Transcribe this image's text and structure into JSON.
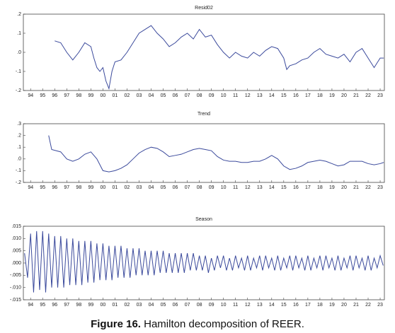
{
  "chart_data": [
    {
      "type": "line",
      "title": "Resid02",
      "color": "#3b4a9c",
      "xlim": [
        1993.4,
        2023.35
      ],
      "ylim": [
        -0.2,
        0.2
      ],
      "yticks": [
        {
          "value": 0.2,
          "label": ".2"
        },
        {
          "value": 0.1,
          "label": ".1"
        },
        {
          "value": 0,
          "label": ".0"
        },
        {
          "value": -0.1,
          "label": "-.1"
        },
        {
          "value": -0.2,
          "label": "-.2"
        }
      ],
      "xticks": [
        {
          "value": 1994,
          "label": "94"
        },
        {
          "value": 1995,
          "label": "95"
        },
        {
          "value": 1996,
          "label": "96"
        },
        {
          "value": 1997,
          "label": "97"
        },
        {
          "value": 1998,
          "label": "98"
        },
        {
          "value": 1999,
          "label": "99"
        },
        {
          "value": 2000,
          "label": "00"
        },
        {
          "value": 2001,
          "label": "01"
        },
        {
          "value": 2002,
          "label": "02"
        },
        {
          "value": 2003,
          "label": "03"
        },
        {
          "value": 2004,
          "label": "04"
        },
        {
          "value": 2005,
          "label": "05"
        },
        {
          "value": 2006,
          "label": "06"
        },
        {
          "value": 2007,
          "label": "07"
        },
        {
          "value": 2008,
          "label": "08"
        },
        {
          "value": 2009,
          "label": "09"
        },
        {
          "value": 2010,
          "label": "10"
        },
        {
          "value": 2011,
          "label": "11"
        },
        {
          "value": 2012,
          "label": "12"
        },
        {
          "value": 2013,
          "label": "13"
        },
        {
          "value": 2014,
          "label": "14"
        },
        {
          "value": 2015,
          "label": "15"
        },
        {
          "value": 2016,
          "label": "16"
        },
        {
          "value": 2017,
          "label": "17"
        },
        {
          "value": 2018,
          "label": "18"
        },
        {
          "value": 2019,
          "label": "19"
        },
        {
          "value": 2020,
          "label": "20"
        },
        {
          "value": 2021,
          "label": "21"
        },
        {
          "value": 2022,
          "label": "22"
        },
        {
          "value": 2023,
          "label": "23"
        }
      ],
      "x": [
        1996,
        1996.5,
        1997,
        1997.5,
        1998,
        1998.5,
        1999,
        1999.25,
        1999.5,
        1999.75,
        2000,
        2000.25,
        2000.5,
        2000.75,
        2001,
        2001.5,
        2002,
        2002.5,
        2003,
        2003.5,
        2004,
        2004.5,
        2005,
        2005.5,
        2006,
        2006.5,
        2007,
        2007.5,
        2008,
        2008.5,
        2009,
        2009.5,
        2010,
        2010.5,
        2011,
        2011.5,
        2012,
        2012.5,
        2013,
        2013.5,
        2014,
        2014.5,
        2015,
        2015.25,
        2015.5,
        2016,
        2016.5,
        2017,
        2017.5,
        2018,
        2018.5,
        2019,
        2019.5,
        2020,
        2020.5,
        2021,
        2021.5,
        2022,
        2022.5,
        2023,
        2023.3
      ],
      "values": [
        0.06,
        0.05,
        0,
        -0.04,
        0,
        0.05,
        0.03,
        -0.03,
        -0.08,
        -0.1,
        -0.08,
        -0.15,
        -0.19,
        -0.1,
        -0.05,
        -0.04,
        0,
        0.05,
        0.1,
        0.12,
        0.14,
        0.1,
        0.07,
        0.03,
        0.05,
        0.08,
        0.1,
        0.07,
        0.12,
        0.08,
        0.09,
        0.04,
        0,
        -0.03,
        0,
        -0.02,
        -0.03,
        0,
        -0.02,
        0.01,
        0.03,
        0.02,
        -0.03,
        -0.09,
        -0.07,
        -0.06,
        -0.04,
        -0.03,
        0,
        0.02,
        -0.01,
        -0.02,
        -0.03,
        -0.01,
        -0.05,
        0,
        0.02,
        -0.03,
        -0.08,
        -0.03,
        -0.03
      ]
    },
    {
      "type": "line",
      "title": "Trend",
      "color": "#3b4a9c",
      "xlim": [
        1993.4,
        2023.35
      ],
      "ylim": [
        -0.2,
        0.3
      ],
      "yticks": [
        {
          "value": 0.3,
          "label": ".3"
        },
        {
          "value": 0.2,
          "label": ".2"
        },
        {
          "value": 0.1,
          "label": ".1"
        },
        {
          "value": 0,
          "label": ".0"
        },
        {
          "value": -0.1,
          "label": "-.1"
        },
        {
          "value": -0.2,
          "label": "-.2"
        }
      ],
      "xticks": [
        {
          "value": 1994,
          "label": "94"
        },
        {
          "value": 1995,
          "label": "95"
        },
        {
          "value": 1996,
          "label": "96"
        },
        {
          "value": 1997,
          "label": "97"
        },
        {
          "value": 1998,
          "label": "98"
        },
        {
          "value": 1999,
          "label": "99"
        },
        {
          "value": 2000,
          "label": "00"
        },
        {
          "value": 2001,
          "label": "01"
        },
        {
          "value": 2002,
          "label": "02"
        },
        {
          "value": 2003,
          "label": "03"
        },
        {
          "value": 2004,
          "label": "04"
        },
        {
          "value": 2005,
          "label": "05"
        },
        {
          "value": 2006,
          "label": "06"
        },
        {
          "value": 2007,
          "label": "07"
        },
        {
          "value": 2008,
          "label": "08"
        },
        {
          "value": 2009,
          "label": "09"
        },
        {
          "value": 2010,
          "label": "10"
        },
        {
          "value": 2011,
          "label": "11"
        },
        {
          "value": 2012,
          "label": "12"
        },
        {
          "value": 2013,
          "label": "13"
        },
        {
          "value": 2014,
          "label": "14"
        },
        {
          "value": 2015,
          "label": "15"
        },
        {
          "value": 2016,
          "label": "16"
        },
        {
          "value": 2017,
          "label": "17"
        },
        {
          "value": 2018,
          "label": "18"
        },
        {
          "value": 2019,
          "label": "19"
        },
        {
          "value": 2020,
          "label": "20"
        },
        {
          "value": 2021,
          "label": "21"
        },
        {
          "value": 2022,
          "label": "22"
        },
        {
          "value": 2023,
          "label": "23"
        }
      ],
      "x": [
        1995.5,
        1995.75,
        1996.5,
        1997,
        1997.5,
        1998,
        1998.5,
        1999,
        1999.5,
        2000,
        2000.5,
        2001,
        2001.5,
        2002,
        2002.5,
        2003,
        2003.5,
        2004,
        2004.5,
        2005,
        2005.5,
        2006,
        2006.5,
        2007,
        2007.5,
        2008,
        2008.5,
        2009,
        2009.5,
        2010,
        2010.5,
        2011,
        2011.5,
        2012,
        2012.5,
        2013,
        2013.5,
        2014,
        2014.5,
        2015,
        2015.5,
        2016,
        2016.5,
        2017,
        2017.5,
        2018,
        2018.5,
        2019,
        2019.5,
        2020,
        2020.5,
        2021,
        2021.5,
        2022,
        2022.5,
        2023,
        2023.3
      ],
      "values": [
        0.2,
        0.08,
        0.06,
        0,
        -0.02,
        0,
        0.04,
        0.06,
        0,
        -0.1,
        -0.11,
        -0.1,
        -0.08,
        -0.05,
        0,
        0.05,
        0.08,
        0.1,
        0.09,
        0.06,
        0.02,
        0.03,
        0.04,
        0.06,
        0.08,
        0.09,
        0.08,
        0.07,
        0.02,
        -0.01,
        -0.02,
        -0.02,
        -0.03,
        -0.03,
        -0.02,
        -0.02,
        0,
        0.03,
        0,
        -0.06,
        -0.09,
        -0.08,
        -0.06,
        -0.03,
        -0.02,
        -0.01,
        -0.02,
        -0.04,
        -0.06,
        -0.05,
        -0.02,
        -0.02,
        -0.02,
        -0.04,
        -0.05,
        -0.04,
        -0.03
      ]
    },
    {
      "type": "line",
      "title": "Season",
      "color": "#3b4a9c",
      "xlim": [
        1993.4,
        2023.35
      ],
      "ylim": [
        -0.015,
        0.015
      ],
      "yticks": [
        {
          "value": 0.015,
          "label": ".015"
        },
        {
          "value": 0.01,
          "label": ".010"
        },
        {
          "value": 0.005,
          "label": ".005"
        },
        {
          "value": 0,
          "label": ".000"
        },
        {
          "value": -0.005,
          "label": "-.005"
        },
        {
          "value": -0.01,
          "label": "-.010"
        },
        {
          "value": -0.015,
          "label": "-.015"
        }
      ],
      "xticks": [
        {
          "value": 1994,
          "label": "94"
        },
        {
          "value": 1995,
          "label": "95"
        },
        {
          "value": 1996,
          "label": "96"
        },
        {
          "value": 1997,
          "label": "97"
        },
        {
          "value": 1998,
          "label": "98"
        },
        {
          "value": 1999,
          "label": "99"
        },
        {
          "value": 2000,
          "label": "00"
        },
        {
          "value": 2001,
          "label": "01"
        },
        {
          "value": 2002,
          "label": "02"
        },
        {
          "value": 2003,
          "label": "03"
        },
        {
          "value": 2004,
          "label": "04"
        },
        {
          "value": 2005,
          "label": "05"
        },
        {
          "value": 2006,
          "label": "06"
        },
        {
          "value": 2007,
          "label": "07"
        },
        {
          "value": 2008,
          "label": "08"
        },
        {
          "value": 2009,
          "label": "09"
        },
        {
          "value": 2010,
          "label": "10"
        },
        {
          "value": 2011,
          "label": "11"
        },
        {
          "value": 2012,
          "label": "12"
        },
        {
          "value": 2013,
          "label": "13"
        },
        {
          "value": 2014,
          "label": "14"
        },
        {
          "value": 2015,
          "label": "15"
        },
        {
          "value": 2016,
          "label": "16"
        },
        {
          "value": 2017,
          "label": "17"
        },
        {
          "value": 2018,
          "label": "18"
        },
        {
          "value": 2019,
          "label": "19"
        },
        {
          "value": 2020,
          "label": "20"
        },
        {
          "value": 2021,
          "label": "21"
        },
        {
          "value": 2022,
          "label": "22"
        },
        {
          "value": 2023,
          "label": "23"
        }
      ],
      "x": [
        1993.5,
        1993.75,
        1994,
        1994.25,
        1994.5,
        1994.75,
        1995,
        1995.25,
        1995.5,
        1995.75,
        1996,
        1996.25,
        1996.5,
        1996.75,
        1997,
        1997.25,
        1997.5,
        1997.75,
        1998,
        1998.25,
        1998.5,
        1998.75,
        1999,
        1999.25,
        1999.5,
        1999.75,
        2000,
        2000.25,
        2000.5,
        2000.75,
        2001,
        2001.25,
        2001.5,
        2001.75,
        2002,
        2002.25,
        2002.5,
        2002.75,
        2003,
        2003.25,
        2003.5,
        2003.75,
        2004,
        2004.25,
        2004.5,
        2004.75,
        2005,
        2005.25,
        2005.5,
        2005.75,
        2006,
        2006.25,
        2006.5,
        2006.75,
        2007,
        2007.25,
        2007.5,
        2007.75,
        2008,
        2008.25,
        2008.5,
        2008.75,
        2009,
        2009.25,
        2009.5,
        2009.75,
        2010,
        2010.25,
        2010.5,
        2010.75,
        2011,
        2011.25,
        2011.5,
        2011.75,
        2012,
        2012.25,
        2012.5,
        2012.75,
        2013,
        2013.25,
        2013.5,
        2013.75,
        2014,
        2014.25,
        2014.5,
        2014.75,
        2015,
        2015.25,
        2015.5,
        2015.75,
        2016,
        2016.25,
        2016.5,
        2016.75,
        2017,
        2017.25,
        2017.5,
        2017.75,
        2018,
        2018.25,
        2018.5,
        2018.75,
        2019,
        2019.25,
        2019.5,
        2019.75,
        2020,
        2020.25,
        2020.5,
        2020.75,
        2021,
        2021.25,
        2021.5,
        2021.75,
        2022,
        2022.25,
        2022.5,
        2022.75,
        2023,
        2023.25
      ],
      "values": [
        0.004,
        -0.006,
        0.012,
        -0.012,
        0.013,
        -0.011,
        0.013,
        -0.012,
        0.012,
        -0.01,
        0.011,
        -0.01,
        0.011,
        -0.01,
        0.01,
        -0.009,
        0.01,
        -0.009,
        0.009,
        -0.009,
        0.009,
        -0.008,
        0.009,
        -0.008,
        0.008,
        -0.007,
        0.008,
        -0.007,
        0.007,
        -0.007,
        0.007,
        -0.006,
        0.007,
        -0.006,
        0.006,
        -0.006,
        0.006,
        -0.005,
        0.006,
        -0.005,
        0.005,
        -0.005,
        0.005,
        -0.005,
        0.005,
        -0.004,
        0.005,
        -0.004,
        0.004,
        -0.004,
        0.004,
        -0.004,
        0.004,
        -0.004,
        0.004,
        -0.003,
        0.004,
        -0.003,
        0.003,
        -0.003,
        0.003,
        -0.004,
        0.002,
        -0.003,
        0.003,
        -0.002,
        0.003,
        -0.003,
        0.002,
        -0.003,
        0.003,
        -0.002,
        0.002,
        -0.003,
        0.003,
        -0.003,
        0.002,
        -0.002,
        0.003,
        -0.003,
        0.003,
        -0.002,
        0.002,
        -0.003,
        0.003,
        -0.003,
        0.002,
        -0.002,
        0.003,
        -0.003,
        0.003,
        -0.002,
        0.002,
        -0.003,
        0.003,
        -0.003,
        0.002,
        -0.002,
        0.003,
        -0.003,
        0.003,
        -0.002,
        0.002,
        -0.003,
        0.003,
        -0.003,
        0.002,
        -0.002,
        0.003,
        -0.003,
        0.003,
        -0.002,
        0.002,
        -0.003,
        0.003,
        -0.003,
        0.002,
        -0.002,
        0.003,
        -0.001
      ]
    }
  ],
  "figure_label": "Figure 16.",
  "caption": "Hamilton decomposition of REER."
}
